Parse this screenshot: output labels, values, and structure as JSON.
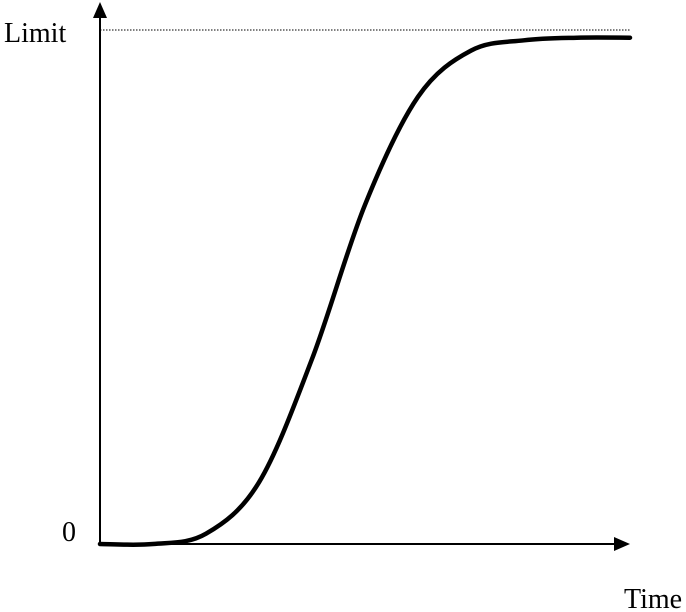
{
  "chart_data": {
    "type": "line",
    "title": "",
    "xlabel": "Time",
    "ylabel": "",
    "y_tick_labels": {
      "top": "Limit",
      "bottom": "0"
    },
    "limit_line": {
      "label": "Limit",
      "style": "dotted",
      "value": 1.0
    },
    "xlim": [
      0,
      10
    ],
    "ylim": [
      0,
      1.0
    ],
    "grid": false,
    "series": [
      {
        "values": [
          {
            "x": 0.0,
            "y": 0.0
          },
          {
            "x": 1.0,
            "y": 0.0
          },
          {
            "x": 2.0,
            "y": 0.02
          },
          {
            "x": 3.0,
            "y": 0.12
          },
          {
            "x": 4.0,
            "y": 0.36
          },
          {
            "x": 5.0,
            "y": 0.66
          },
          {
            "x": 6.0,
            "y": 0.87
          },
          {
            "x": 7.0,
            "y": 0.96
          },
          {
            "x": 8.0,
            "y": 0.98
          },
          {
            "x": 9.0,
            "y": 0.985
          },
          {
            "x": 10.0,
            "y": 0.985
          }
        ],
        "color": "#000000"
      }
    ]
  }
}
